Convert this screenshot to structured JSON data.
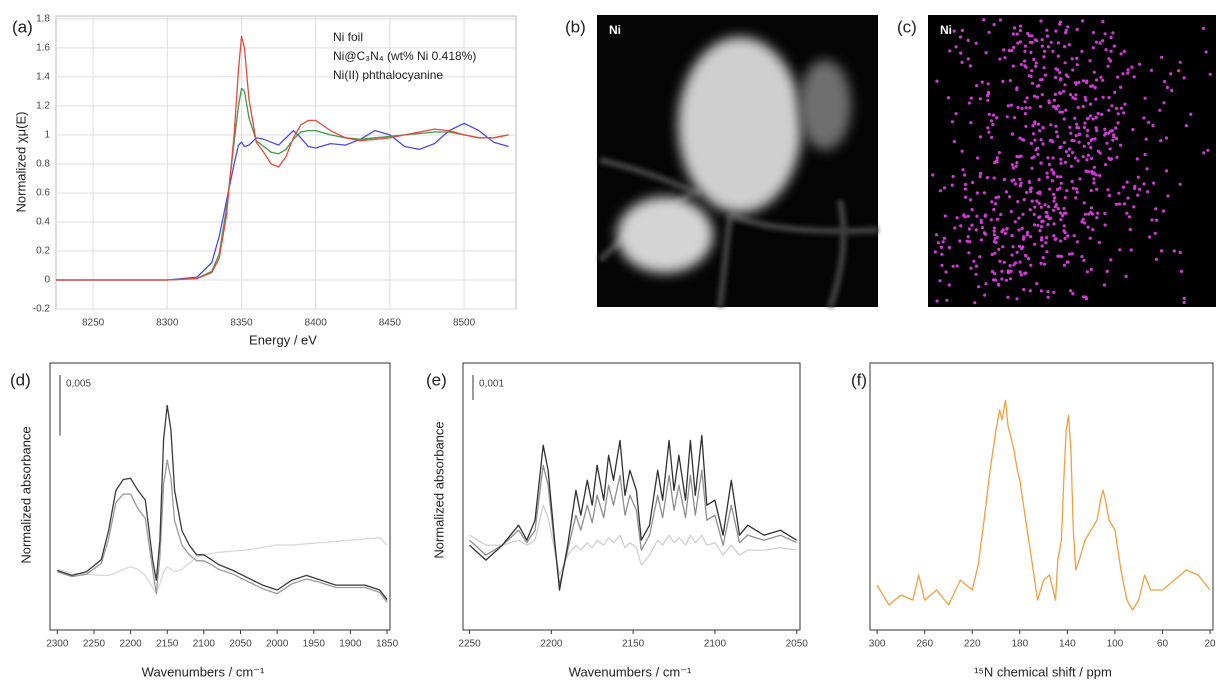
{
  "chart_data": [
    {
      "type": "line",
      "panel_label": "(a)",
      "x_label": "Energy / eV",
      "y_label": "Normalized χμ(E)",
      "x": [
        8225,
        8300,
        8320,
        8330,
        8335,
        8340,
        8345,
        8348,
        8350,
        8352,
        8355,
        8360,
        8365,
        8370,
        8375,
        8380,
        8385,
        8390,
        8395,
        8400,
        8410,
        8420,
        8430,
        8440,
        8450,
        8460,
        8470,
        8480,
        8490,
        8500,
        8510,
        8520,
        8530
      ],
      "series": [
        {
          "name": "Ni foil",
          "color": "#4a4ae8",
          "values": [
            0,
            0,
            0.02,
            0.12,
            0.3,
            0.55,
            0.8,
            0.93,
            0.95,
            0.92,
            0.93,
            0.98,
            0.97,
            0.95,
            0.93,
            0.98,
            1.03,
            0.98,
            0.92,
            0.91,
            0.94,
            0.93,
            0.97,
            1.03,
            1.0,
            0.92,
            0.9,
            0.94,
            1.03,
            1.08,
            1.03,
            0.95,
            0.92
          ]
        },
        {
          "name": "Ni@C₃N₄ (wt% Ni 0.418%)",
          "color": "#3f9a4a",
          "values": [
            0,
            0,
            0.01,
            0.06,
            0.18,
            0.5,
            0.95,
            1.2,
            1.32,
            1.3,
            1.12,
            0.96,
            0.92,
            0.88,
            0.87,
            0.9,
            0.97,
            1.02,
            1.03,
            1.03,
            1.0,
            0.98,
            0.97,
            0.98,
            0.99,
            1.0,
            1.01,
            1.02,
            1.02,
            1.0,
            0.98,
            0.98,
            1.0
          ]
        },
        {
          "name": "Ni(II) phthalocyanine",
          "color": "#e8483f",
          "values": [
            0,
            0,
            0.01,
            0.05,
            0.15,
            0.45,
            1.0,
            1.45,
            1.68,
            1.6,
            1.25,
            0.95,
            0.88,
            0.8,
            0.78,
            0.85,
            0.98,
            1.07,
            1.1,
            1.1,
            1.03,
            0.98,
            0.96,
            0.97,
            0.98,
            1.0,
            1.02,
            1.04,
            1.03,
            1.0,
            0.98,
            0.98,
            1.0
          ]
        }
      ],
      "xlim": [
        8225,
        8535
      ],
      "xticks": [
        8250,
        8300,
        8350,
        8400,
        8450,
        8500
      ],
      "ylim": [
        -0.2,
        1.82
      ],
      "yticks": [
        -0.2,
        0,
        0.2,
        0.4,
        0.6,
        0.8,
        1,
        1.2,
        1.4,
        1.6,
        1.8
      ],
      "grid": true,
      "legend": "upper right"
    },
    {
      "type": "line",
      "panel_label": "(d)",
      "x_label": "Wavenumbers / cm⁻¹",
      "y_label": "Normalized absorbance",
      "x": [
        2300,
        2280,
        2260,
        2240,
        2230,
        2220,
        2210,
        2200,
        2190,
        2180,
        2170,
        2165,
        2160,
        2155,
        2150,
        2145,
        2140,
        2130,
        2120,
        2110,
        2100,
        2090,
        2080,
        2060,
        2040,
        2020,
        2000,
        1980,
        1960,
        1940,
        1920,
        1900,
        1880,
        1860,
        1850
      ],
      "series": [
        {
          "color": "#d8d8d8",
          "values": [
            0.005,
            0.0047,
            0.0046,
            0.0045,
            0.0045,
            0.0047,
            0.005,
            0.0052,
            0.005,
            0.0045,
            0.0035,
            0.003,
            0.0038,
            0.0048,
            0.0052,
            0.005,
            0.0048,
            0.005,
            0.0055,
            0.006,
            0.0062,
            0.0063,
            0.0064,
            0.0065,
            0.0066,
            0.0068,
            0.007,
            0.007,
            0.0071,
            0.0072,
            0.0073,
            0.0074,
            0.0075,
            0.0076,
            0.007
          ]
        },
        {
          "color": "#9a9a9a",
          "values": [
            0.0048,
            0.0044,
            0.0046,
            0.0055,
            0.0075,
            0.0105,
            0.0112,
            0.0112,
            0.01,
            0.0092,
            0.005,
            0.003,
            0.006,
            0.012,
            0.014,
            0.0125,
            0.009,
            0.007,
            0.0062,
            0.0057,
            0.0057,
            0.0054,
            0.005,
            0.0046,
            0.004,
            0.0034,
            0.003,
            0.0038,
            0.0042,
            0.0039,
            0.0035,
            0.0035,
            0.0035,
            0.0031,
            0.0023
          ]
        },
        {
          "color": "#3a3a3a",
          "values": [
            0.0049,
            0.0045,
            0.0048,
            0.0058,
            0.0082,
            0.0115,
            0.0124,
            0.0125,
            0.0115,
            0.0107,
            0.0058,
            0.0041,
            0.0074,
            0.0157,
            0.0185,
            0.0165,
            0.0115,
            0.0082,
            0.007,
            0.0062,
            0.0062,
            0.0058,
            0.0054,
            0.0049,
            0.0043,
            0.0037,
            0.0033,
            0.0041,
            0.0045,
            0.0041,
            0.0037,
            0.0037,
            0.0037,
            0.0033,
            0.0025
          ]
        }
      ],
      "xlim": [
        2310,
        1846
      ],
      "xticks": [
        2300,
        2250,
        2200,
        2150,
        2100,
        2050,
        2000,
        1950,
        1900,
        1850
      ],
      "ylim": [
        0,
        0.022
      ],
      "scale_bar": {
        "value": 0.005,
        "label": "0,005"
      },
      "grid": false
    },
    {
      "type": "line",
      "panel_label": "(e)",
      "x_label": "Wavenumbers / cm⁻¹",
      "y_label": "Normalized absorbance",
      "x": [
        2250,
        2240,
        2230,
        2220,
        2215,
        2210,
        2205,
        2202,
        2198,
        2195,
        2190,
        2185,
        2182,
        2178,
        2175,
        2172,
        2168,
        2165,
        2162,
        2158,
        2155,
        2152,
        2148,
        2145,
        2140,
        2135,
        2132,
        2128,
        2125,
        2122,
        2118,
        2115,
        2112,
        2108,
        2105,
        2100,
        2095,
        2090,
        2085,
        2080,
        2070,
        2060,
        2050
      ],
      "series": [
        {
          "color": "#d0d0d0",
          "values": [
            0.0038,
            0.0034,
            0.0034,
            0.0036,
            0.0034,
            0.0036,
            0.005,
            0.0045,
            0.0032,
            0.0022,
            0.003,
            0.0034,
            0.0032,
            0.0035,
            0.0033,
            0.0036,
            0.0034,
            0.0037,
            0.0035,
            0.0038,
            0.0033,
            0.0035,
            0.0033,
            0.0026,
            0.003,
            0.0036,
            0.0034,
            0.0038,
            0.0035,
            0.0037,
            0.0034,
            0.0038,
            0.0035,
            0.0038,
            0.0034,
            0.0035,
            0.003,
            0.0034,
            0.003,
            0.0032,
            0.0032,
            0.0033,
            0.0032
          ]
        },
        {
          "color": "#8e8e8e",
          "values": [
            0.0036,
            0.003,
            0.0034,
            0.004,
            0.0035,
            0.004,
            0.0066,
            0.0058,
            0.0034,
            0.0018,
            0.0032,
            0.0046,
            0.004,
            0.005,
            0.0043,
            0.0054,
            0.0045,
            0.0058,
            0.005,
            0.0062,
            0.0046,
            0.0054,
            0.0048,
            0.0032,
            0.0038,
            0.0054,
            0.0045,
            0.0062,
            0.0048,
            0.0058,
            0.0045,
            0.0062,
            0.0046,
            0.0064,
            0.0044,
            0.0046,
            0.0034,
            0.005,
            0.0035,
            0.0038,
            0.0036,
            0.0038,
            0.0035
          ]
        },
        {
          "color": "#303030",
          "values": [
            0.0034,
            0.0028,
            0.0034,
            0.0042,
            0.0036,
            0.0044,
            0.0074,
            0.0064,
            0.0036,
            0.0016,
            0.0034,
            0.0056,
            0.0046,
            0.006,
            0.005,
            0.0066,
            0.0052,
            0.007,
            0.006,
            0.0076,
            0.0054,
            0.0064,
            0.0056,
            0.0036,
            0.0042,
            0.0064,
            0.0052,
            0.0076,
            0.0056,
            0.007,
            0.0052,
            0.0076,
            0.0054,
            0.0078,
            0.005,
            0.0052,
            0.0038,
            0.006,
            0.0038,
            0.0042,
            0.0038,
            0.004,
            0.0036
          ]
        }
      ],
      "xlim": [
        2254,
        2048
      ],
      "xticks": [
        2250,
        2200,
        2150,
        2100,
        2050
      ],
      "ylim": [
        0,
        0.0107
      ],
      "scale_bar": {
        "value": 0.001,
        "label": "0,001"
      },
      "grid": false
    },
    {
      "type": "line",
      "panel_label": "(f)",
      "x_label": "¹⁵N chemical shift / ppm",
      "x": [
        300,
        290,
        280,
        270,
        265,
        260,
        250,
        240,
        230,
        220,
        215,
        210,
        205,
        200,
        197,
        195,
        192,
        190,
        187,
        185,
        182,
        180,
        175,
        170,
        165,
        160,
        155,
        150,
        148,
        145,
        143,
        141,
        139,
        137,
        135,
        133,
        130,
        125,
        120,
        115,
        112,
        110,
        108,
        105,
        100,
        95,
        90,
        85,
        80,
        75,
        70,
        60,
        50,
        40,
        30,
        20
      ],
      "series": [
        {
          "color": "#f0a040",
          "values": [
            16.9,
            9.4,
            13.1,
            11.2,
            20.6,
            11.2,
            15.0,
            9.4,
            18.7,
            15.0,
            24.3,
            41.2,
            59.9,
            74.9,
            82.4,
            78.7,
            86.1,
            76.8,
            71.2,
            67.4,
            59.9,
            56.2,
            41.2,
            26.2,
            11.2,
            18.7,
            20.6,
            11.2,
            26.2,
            33.7,
            56.2,
            74.9,
            80.5,
            67.4,
            37.5,
            22.5,
            26.2,
            33.7,
            37.5,
            41.2,
            48.7,
            52.4,
            48.7,
            41.2,
            37.5,
            22.5,
            11.2,
            7.5,
            11.2,
            20.6,
            15.0,
            15.0,
            18.7,
            22.5,
            20.6,
            15.0
          ]
        }
      ],
      "xlim": [
        306,
        17.5
      ],
      "xticks": [
        300,
        260,
        220,
        180,
        140,
        100,
        60,
        20
      ],
      "ylim": [
        0,
        100
      ],
      "grid": false
    }
  ],
  "images": [
    {
      "panel_label": "(b)",
      "element": "Ni"
    },
    {
      "panel_label": "(c)",
      "element": "Ni"
    }
  ]
}
